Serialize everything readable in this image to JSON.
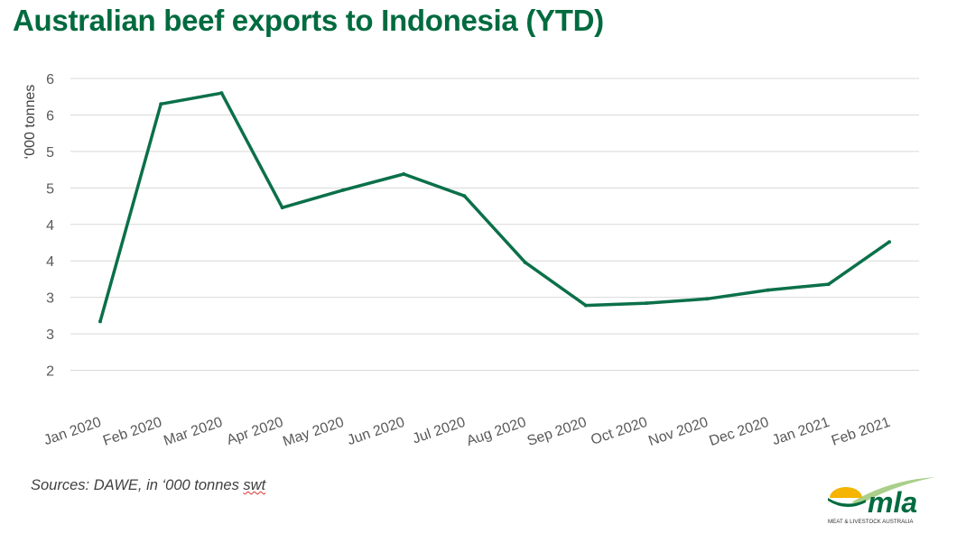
{
  "title": "Australian beef exports to Indonesia (YTD)",
  "source": {
    "prefix": "Sources: DAWE, in ‘000 tonnes ",
    "swt": "swt"
  },
  "logo": {
    "wordmark": "mla",
    "tagline": "MEAT & LIVESTOCK AUSTRALIA",
    "colors": {
      "green": "#006b3f",
      "yellow": "#f5b400",
      "light_green": "#a9cf8a"
    }
  },
  "colors": {
    "line": "#0b7049",
    "grid": "#d9d9d9",
    "title": "#006b3f"
  },
  "chart_data": {
    "type": "line",
    "title": "Australian beef exports to Indonesia (YTD)",
    "xlabel": "",
    "ylabel": "‘000 tonnes",
    "ylim": [
      1.5,
      6.0
    ],
    "y_ticks": [
      2.0,
      2.5,
      3.0,
      3.5,
      4.0,
      4.5,
      5.0,
      5.5,
      6.0
    ],
    "y_tick_labels": [
      "2",
      "3",
      "3",
      "4",
      "4",
      "5",
      "5",
      "6",
      "6"
    ],
    "grid": true,
    "legend": "none",
    "categories": [
      "Jan 2020",
      "Feb 2020",
      "Mar 2020",
      "Apr 2020",
      "May 2020",
      "Jun 2020",
      "Jul 2020",
      "Aug 2020",
      "Sep 2020",
      "Oct 2020",
      "Nov 2020",
      "Dec 2020",
      "Jan 2021",
      "Feb 2021"
    ],
    "series": [
      {
        "values": [
          2.67,
          5.65,
          5.8,
          4.23,
          4.47,
          4.69,
          4.39,
          3.48,
          2.89,
          2.92,
          2.98,
          3.1,
          3.18,
          3.76
        ]
      }
    ]
  }
}
